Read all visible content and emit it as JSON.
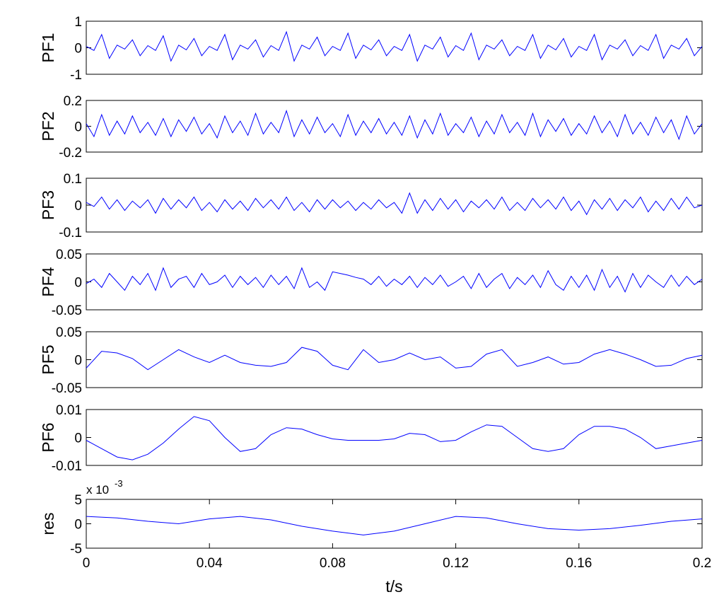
{
  "chart_data": [
    {
      "type": "line",
      "ylabel": "PF1",
      "color": "#0000ff",
      "ylim": [
        -1,
        1
      ],
      "yticks": [
        -1,
        0,
        1
      ],
      "xlim": [
        0,
        0.2
      ],
      "x": [
        0,
        0.0025,
        0.005,
        0.0075,
        0.01,
        0.0125,
        0.015,
        0.0175,
        0.02,
        0.0225,
        0.025,
        0.0275,
        0.03,
        0.0325,
        0.035,
        0.0375,
        0.04,
        0.0425,
        0.045,
        0.0475,
        0.05,
        0.0525,
        0.055,
        0.0575,
        0.06,
        0.0625,
        0.065,
        0.0675,
        0.07,
        0.0725,
        0.075,
        0.0775,
        0.08,
        0.0825,
        0.085,
        0.0875,
        0.09,
        0.0925,
        0.095,
        0.0975,
        0.1,
        0.1025,
        0.105,
        0.1075,
        0.11,
        0.1125,
        0.115,
        0.1175,
        0.12,
        0.1225,
        0.125,
        0.1275,
        0.13,
        0.1325,
        0.135,
        0.1375,
        0.14,
        0.1425,
        0.145,
        0.1475,
        0.15,
        0.1525,
        0.155,
        0.1575,
        0.16,
        0.1625,
        0.165,
        0.1675,
        0.17,
        0.1725,
        0.175,
        0.1775,
        0.18,
        0.1825,
        0.185,
        0.1875,
        0.19,
        0.1925,
        0.195,
        0.1975,
        0.2
      ],
      "values": [
        0.05,
        -0.1,
        0.5,
        -0.4,
        0.1,
        -0.05,
        0.3,
        -0.3,
        0.08,
        -0.1,
        0.45,
        -0.5,
        0.1,
        -0.08,
        0.35,
        -0.3,
        0.05,
        -0.1,
        0.5,
        -0.45,
        0.1,
        -0.05,
        0.3,
        -0.35,
        0.08,
        -0.1,
        0.6,
        -0.5,
        0.1,
        -0.05,
        0.4,
        -0.3,
        0.05,
        -0.1,
        0.55,
        -0.4,
        0.1,
        -0.08,
        0.3,
        -0.3,
        0.05,
        -0.1,
        0.5,
        -0.5,
        0.1,
        -0.05,
        0.4,
        -0.35,
        0.08,
        -0.1,
        0.55,
        -0.45,
        0.1,
        -0.05,
        0.3,
        -0.3,
        0.05,
        -0.1,
        0.5,
        -0.4,
        0.1,
        -0.08,
        0.35,
        -0.35,
        0.05,
        -0.1,
        0.5,
        -0.45,
        0.1,
        -0.05,
        0.3,
        -0.3,
        0.08,
        -0.1,
        0.5,
        -0.4,
        0.1,
        -0.05,
        0.35,
        -0.3,
        0.05
      ]
    },
    {
      "type": "line",
      "ylabel": "PF2",
      "color": "#0000ff",
      "ylim": [
        -0.2,
        0.2
      ],
      "yticks": [
        -0.2,
        0,
        0.2
      ],
      "xlim": [
        0,
        0.2
      ],
      "x": [
        0,
        0.0025,
        0.005,
        0.0075,
        0.01,
        0.0125,
        0.015,
        0.0175,
        0.02,
        0.0225,
        0.025,
        0.0275,
        0.03,
        0.0325,
        0.035,
        0.0375,
        0.04,
        0.0425,
        0.045,
        0.0475,
        0.05,
        0.0525,
        0.055,
        0.0575,
        0.06,
        0.0625,
        0.065,
        0.0675,
        0.07,
        0.0725,
        0.075,
        0.0775,
        0.08,
        0.0825,
        0.085,
        0.0875,
        0.09,
        0.0925,
        0.095,
        0.0975,
        0.1,
        0.1025,
        0.105,
        0.1075,
        0.11,
        0.1125,
        0.115,
        0.1175,
        0.12,
        0.1225,
        0.125,
        0.1275,
        0.13,
        0.1325,
        0.135,
        0.1375,
        0.14,
        0.1425,
        0.145,
        0.1475,
        0.15,
        0.1525,
        0.155,
        0.1575,
        0.16,
        0.1625,
        0.165,
        0.1675,
        0.17,
        0.1725,
        0.175,
        0.1775,
        0.18,
        0.1825,
        0.185,
        0.1875,
        0.19,
        0.1925,
        0.195,
        0.1975,
        0.2
      ],
      "values": [
        0.02,
        -0.08,
        0.09,
        -0.07,
        0.04,
        -0.06,
        0.08,
        -0.05,
        0.03,
        -0.07,
        0.06,
        -0.08,
        0.05,
        -0.04,
        0.07,
        -0.06,
        0.02,
        -0.09,
        0.08,
        -0.05,
        0.04,
        -0.07,
        0.1,
        -0.06,
        0.03,
        -0.05,
        0.12,
        -0.08,
        0.05,
        -0.06,
        0.07,
        -0.05,
        0.02,
        -0.08,
        0.09,
        -0.07,
        0.04,
        -0.05,
        0.06,
        -0.06,
        0.03,
        -0.07,
        0.08,
        -0.09,
        0.05,
        -0.06,
        0.1,
        -0.07,
        0.02,
        -0.05,
        0.07,
        -0.08,
        0.04,
        -0.06,
        0.09,
        -0.05,
        0.03,
        -0.07,
        0.1,
        -0.08,
        0.05,
        -0.04,
        0.06,
        -0.07,
        0.02,
        -0.06,
        0.08,
        -0.05,
        0.04,
        -0.08,
        0.09,
        -0.06,
        0.03,
        -0.07,
        0.07,
        -0.05,
        0.05,
        -0.1,
        0.08,
        -0.06,
        0.02
      ]
    },
    {
      "type": "line",
      "ylabel": "PF3",
      "color": "#0000ff",
      "ylim": [
        -0.1,
        0.1
      ],
      "yticks": [
        -0.1,
        0,
        0.1
      ],
      "xlim": [
        0,
        0.2
      ],
      "x": [
        0,
        0.0025,
        0.005,
        0.0075,
        0.01,
        0.0125,
        0.015,
        0.0175,
        0.02,
        0.0225,
        0.025,
        0.0275,
        0.03,
        0.0325,
        0.035,
        0.0375,
        0.04,
        0.0425,
        0.045,
        0.0475,
        0.05,
        0.0525,
        0.055,
        0.0575,
        0.06,
        0.0625,
        0.065,
        0.0675,
        0.07,
        0.0725,
        0.075,
        0.0775,
        0.08,
        0.0825,
        0.085,
        0.0875,
        0.09,
        0.0925,
        0.095,
        0.0975,
        0.1,
        0.1025,
        0.105,
        0.1075,
        0.11,
        0.1125,
        0.115,
        0.1175,
        0.12,
        0.1225,
        0.125,
        0.1275,
        0.13,
        0.1325,
        0.135,
        0.1375,
        0.14,
        0.1425,
        0.145,
        0.1475,
        0.15,
        0.1525,
        0.155,
        0.1575,
        0.16,
        0.1625,
        0.165,
        0.1675,
        0.17,
        0.1725,
        0.175,
        0.1775,
        0.18,
        0.1825,
        0.185,
        0.1875,
        0.19,
        0.1925,
        0.195,
        0.1975,
        0.2
      ],
      "values": [
        0.01,
        -0.005,
        0.03,
        -0.015,
        0.02,
        -0.02,
        0.015,
        -0.01,
        0.02,
        -0.03,
        0.025,
        -0.015,
        0.02,
        -0.01,
        0.03,
        -0.02,
        0.01,
        -0.025,
        0.02,
        -0.015,
        0.015,
        -0.02,
        0.025,
        -0.01,
        0.02,
        -0.015,
        0.03,
        -0.02,
        0.01,
        -0.025,
        0.02,
        -0.015,
        0.02,
        -0.01,
        0.015,
        -0.02,
        0.01,
        -0.015,
        0.02,
        -0.01,
        0.01,
        -0.03,
        0.045,
        -0.03,
        0.02,
        -0.02,
        0.025,
        -0.015,
        0.02,
        -0.025,
        0.015,
        -0.01,
        0.02,
        -0.015,
        0.03,
        -0.02,
        0.01,
        -0.02,
        0.025,
        -0.01,
        0.02,
        -0.015,
        0.03,
        -0.02,
        0.015,
        -0.035,
        0.02,
        -0.015,
        0.025,
        -0.02,
        0.02,
        -0.01,
        0.03,
        -0.025,
        0.015,
        -0.02,
        0.025,
        -0.015,
        0.03,
        -0.01,
        0.0
      ]
    },
    {
      "type": "line",
      "ylabel": "PF4",
      "color": "#0000ff",
      "ylim": [
        -0.05,
        0.05
      ],
      "yticks": [
        -0.05,
        0,
        0.05
      ],
      "xlim": [
        0,
        0.2
      ],
      "x": [
        0,
        0.0025,
        0.005,
        0.0075,
        0.01,
        0.0125,
        0.015,
        0.0175,
        0.02,
        0.0225,
        0.025,
        0.0275,
        0.03,
        0.0325,
        0.035,
        0.0375,
        0.04,
        0.0425,
        0.045,
        0.0475,
        0.05,
        0.0525,
        0.055,
        0.0575,
        0.06,
        0.0625,
        0.065,
        0.0675,
        0.07,
        0.0725,
        0.075,
        0.0775,
        0.08,
        0.0825,
        0.085,
        0.0875,
        0.09,
        0.0925,
        0.095,
        0.0975,
        0.1,
        0.1025,
        0.105,
        0.1075,
        0.11,
        0.1125,
        0.115,
        0.1175,
        0.12,
        0.1225,
        0.125,
        0.1275,
        0.13,
        0.1325,
        0.135,
        0.1375,
        0.14,
        0.1425,
        0.145,
        0.1475,
        0.15,
        0.1525,
        0.155,
        0.1575,
        0.16,
        0.1625,
        0.165,
        0.1675,
        0.17,
        0.1725,
        0.175,
        0.1775,
        0.18,
        0.1825,
        0.185,
        0.1875,
        0.19,
        0.1925,
        0.195,
        0.1975,
        0.2
      ],
      "values": [
        -0.003,
        0.005,
        -0.01,
        0.015,
        0.0,
        -0.015,
        0.01,
        -0.005,
        0.015,
        -0.015,
        0.025,
        -0.01,
        0.005,
        0.01,
        -0.01,
        0.015,
        -0.005,
        0.0,
        0.012,
        -0.01,
        0.01,
        -0.005,
        0.008,
        -0.01,
        0.012,
        -0.005,
        0.01,
        -0.012,
        0.025,
        -0.01,
        0.0,
        -0.015,
        0.018,
        0.015,
        0.012,
        0.008,
        0.005,
        -0.005,
        0.01,
        -0.008,
        0.005,
        -0.005,
        0.01,
        -0.01,
        0.008,
        -0.005,
        0.012,
        -0.008,
        0.0,
        0.01,
        -0.012,
        0.015,
        -0.01,
        0.005,
        0.015,
        -0.012,
        0.008,
        -0.005,
        0.012,
        -0.01,
        0.02,
        -0.005,
        -0.015,
        0.01,
        -0.01,
        0.012,
        -0.015,
        0.022,
        -0.01,
        0.01,
        -0.018,
        0.015,
        -0.01,
        0.012,
        0.0,
        -0.01,
        0.012,
        -0.008,
        0.01,
        -0.005,
        0.005
      ]
    },
    {
      "type": "line",
      "ylabel": "PF5",
      "color": "#0000ff",
      "ylim": [
        -0.05,
        0.05
      ],
      "yticks": [
        -0.05,
        0,
        0.05
      ],
      "xlim": [
        0,
        0.2
      ],
      "x": [
        0,
        0.005,
        0.01,
        0.015,
        0.02,
        0.025,
        0.03,
        0.035,
        0.04,
        0.045,
        0.05,
        0.055,
        0.06,
        0.065,
        0.07,
        0.075,
        0.08,
        0.085,
        0.09,
        0.095,
        0.1,
        0.105,
        0.11,
        0.115,
        0.12,
        0.125,
        0.13,
        0.135,
        0.14,
        0.145,
        0.15,
        0.155,
        0.16,
        0.165,
        0.17,
        0.175,
        0.18,
        0.185,
        0.19,
        0.195,
        0.2
      ],
      "values": [
        -0.015,
        0.015,
        0.012,
        0.002,
        -0.018,
        0.0,
        0.018,
        0.005,
        -0.005,
        0.008,
        -0.005,
        -0.01,
        -0.012,
        -0.005,
        0.022,
        0.015,
        -0.01,
        -0.018,
        0.018,
        -0.005,
        0.0,
        0.012,
        0.0,
        0.005,
        -0.015,
        -0.012,
        0.01,
        0.018,
        -0.012,
        -0.005,
        0.005,
        -0.008,
        -0.005,
        0.01,
        0.018,
        0.01,
        0.0,
        -0.012,
        -0.01,
        0.002,
        0.008
      ]
    },
    {
      "type": "line",
      "ylabel": "PF6",
      "color": "#0000ff",
      "ylim": [
        -0.01,
        0.01
      ],
      "yticks": [
        -0.01,
        0,
        0.01
      ],
      "xlim": [
        0,
        0.2
      ],
      "x": [
        0,
        0.005,
        0.01,
        0.015,
        0.02,
        0.025,
        0.03,
        0.035,
        0.04,
        0.045,
        0.05,
        0.055,
        0.06,
        0.065,
        0.07,
        0.075,
        0.08,
        0.085,
        0.09,
        0.095,
        0.1,
        0.105,
        0.11,
        0.115,
        0.12,
        0.125,
        0.13,
        0.135,
        0.14,
        0.145,
        0.15,
        0.155,
        0.16,
        0.165,
        0.17,
        0.175,
        0.18,
        0.185,
        0.19,
        0.195,
        0.2
      ],
      "values": [
        -0.001,
        -0.004,
        -0.007,
        -0.008,
        -0.006,
        -0.002,
        0.003,
        0.0075,
        0.006,
        0.0,
        -0.005,
        -0.004,
        0.001,
        0.0035,
        0.003,
        0.001,
        -0.0005,
        -0.001,
        -0.001,
        -0.001,
        -0.0005,
        0.0015,
        0.001,
        -0.0015,
        -0.001,
        0.002,
        0.0045,
        0.004,
        0.0,
        -0.004,
        -0.005,
        -0.004,
        0.001,
        0.004,
        0.004,
        0.003,
        0.0,
        -0.004,
        -0.003,
        -0.002,
        -0.001
      ]
    },
    {
      "type": "line",
      "ylabel": "res",
      "scale_base": "x 10",
      "scale_exponent": "-3",
      "xlabel": "t/s",
      "color": "#0000ff",
      "ylim": [
        -5,
        5
      ],
      "yticks": [
        -5,
        0,
        5
      ],
      "xlim": [
        0,
        0.2
      ],
      "xticks": [
        0,
        0.04,
        0.08,
        0.12,
        0.16,
        0.2
      ],
      "x": [
        0,
        0.01,
        0.02,
        0.03,
        0.04,
        0.05,
        0.06,
        0.07,
        0.08,
        0.09,
        0.1,
        0.11,
        0.12,
        0.13,
        0.14,
        0.15,
        0.16,
        0.17,
        0.18,
        0.19,
        0.2
      ],
      "values": [
        1.5,
        1.2,
        0.5,
        0.0,
        1.0,
        1.5,
        0.8,
        -0.5,
        -1.5,
        -2.3,
        -1.5,
        0.0,
        1.5,
        1.2,
        0.0,
        -1.0,
        -1.3,
        -1.0,
        -0.3,
        0.5,
        1.0
      ]
    }
  ]
}
